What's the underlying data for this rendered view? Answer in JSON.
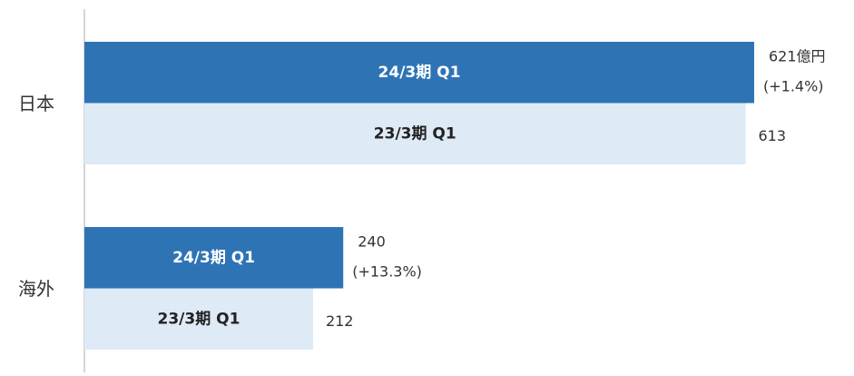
{
  "chart_data": {
    "type": "bar",
    "orientation": "horizontal",
    "categories": [
      "日本",
      "海外"
    ],
    "series": [
      {
        "name": "24/3期 Q1",
        "color": "#2e74b5",
        "values": [
          621,
          240
        ],
        "value_labels": [
          "621億円",
          "240"
        ],
        "annotations": [
          "(+1.4%)",
          "(+13.3%)"
        ]
      },
      {
        "name": "23/3期 Q1",
        "color": "#deeaf6",
        "values": [
          613,
          212
        ]
      }
    ],
    "xlim": [
      0,
      621
    ]
  }
}
